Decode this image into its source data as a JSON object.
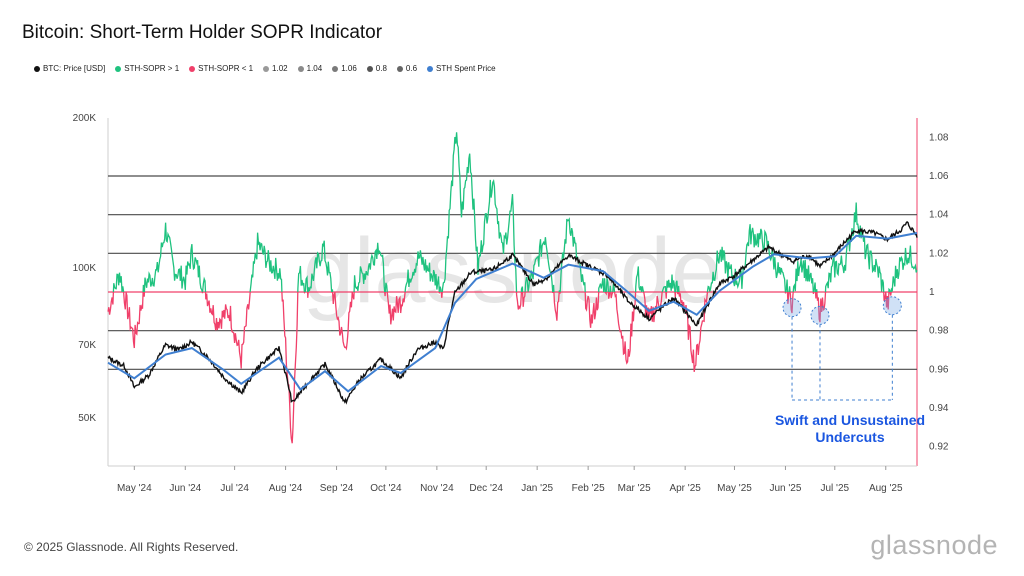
{
  "title": "Bitcoin: Short-Term Holder SOPR Indicator",
  "footer": "© 2025 Glassnode. All Rights Reserved.",
  "brand": "glassnode",
  "watermark": "glassnode",
  "legend": [
    {
      "label": "BTC: Price [USD]",
      "color": "#111111"
    },
    {
      "label": "STH-SOPR > 1",
      "color": "#1fc27f"
    },
    {
      "label": "STH-SOPR < 1",
      "color": "#f0406a"
    },
    {
      "label": "1.02",
      "color": "#9a9a9a"
    },
    {
      "label": "1.04",
      "color": "#8a8a8a"
    },
    {
      "label": "1.06",
      "color": "#7a7a7a"
    },
    {
      "label": "0.8",
      "color": "#555555"
    },
    {
      "label": "0.6",
      "color": "#666666"
    },
    {
      "label": "STH Spent Price",
      "color": "#3f7fd0"
    }
  ],
  "annotation": {
    "line1": "Swift and Unsustained",
    "line2": "Undercuts"
  },
  "chart_data": {
    "type": "line",
    "x_tick_labels": [
      "May '24",
      "Jun '24",
      "Jul '24",
      "Aug '24",
      "Sep '24",
      "Oct '24",
      "Nov '24",
      "Dec '24",
      "Jan '25",
      "Feb '25",
      "Mar '25",
      "Apr '25",
      "May '25",
      "Jun '25",
      "Jul '25",
      "Aug '25"
    ],
    "x_range": [
      "2024-04-15",
      "2025-08-20"
    ],
    "y_left": {
      "scale": "log",
      "ticks": [
        {
          "value": 50000,
          "label": "50K"
        },
        {
          "value": 70000,
          "label": "70K"
        },
        {
          "value": 100000,
          "label": "100K"
        },
        {
          "value": 200000,
          "label": "200K"
        }
      ],
      "range": [
        40000,
        200000
      ]
    },
    "y_right": {
      "scale": "linear",
      "ticks": [
        0.92,
        0.94,
        0.96,
        0.98,
        1,
        1.02,
        1.04,
        1.06,
        1.08
      ],
      "range": [
        0.91,
        1.09
      ]
    },
    "reference_lines": [
      0.96,
      0.98,
      1.02,
      1.04,
      1.06
    ],
    "price_points": [
      [
        "2024-04-15",
        66000
      ],
      [
        "2024-04-25",
        63500
      ],
      [
        "2024-05-01",
        57500
      ],
      [
        "2024-05-10",
        61000
      ],
      [
        "2024-05-20",
        70000
      ],
      [
        "2024-05-28",
        68500
      ],
      [
        "2024-06-05",
        71000
      ],
      [
        "2024-06-15",
        66000
      ],
      [
        "2024-06-24",
        60500
      ],
      [
        "2024-07-05",
        56000
      ],
      [
        "2024-07-15",
        63000
      ],
      [
        "2024-07-28",
        69000
      ],
      [
        "2024-08-05",
        53500
      ],
      [
        "2024-08-15",
        59000
      ],
      [
        "2024-08-25",
        64000
      ],
      [
        "2024-09-06",
        53500
      ],
      [
        "2024-09-15",
        59500
      ],
      [
        "2024-09-28",
        65500
      ],
      [
        "2024-10-10",
        60000
      ],
      [
        "2024-10-20",
        68500
      ],
      [
        "2024-10-31",
        71000
      ],
      [
        "2024-11-05",
        68500
      ],
      [
        "2024-11-12",
        89000
      ],
      [
        "2024-11-22",
        98000
      ],
      [
        "2024-12-05",
        99000
      ],
      [
        "2024-12-17",
        106000
      ],
      [
        "2024-12-30",
        92500
      ],
      [
        "2025-01-08",
        96000
      ],
      [
        "2025-01-20",
        106000
      ],
      [
        "2025-02-01",
        101000
      ],
      [
        "2025-02-12",
        97000
      ],
      [
        "2025-02-25",
        86000
      ],
      [
        "2025-03-10",
        79000
      ],
      [
        "2025-03-25",
        87000
      ],
      [
        "2025-04-08",
        76500
      ],
      [
        "2025-04-22",
        93000
      ],
      [
        "2025-05-01",
        96500
      ],
      [
        "2025-05-12",
        103500
      ],
      [
        "2025-05-22",
        110000
      ],
      [
        "2025-06-05",
        103000
      ],
      [
        "2025-06-15",
        106000
      ],
      [
        "2025-06-22",
        100500
      ],
      [
        "2025-07-01",
        107000
      ],
      [
        "2025-07-14",
        119000
      ],
      [
        "2025-07-25",
        117500
      ],
      [
        "2025-08-02",
        114000
      ],
      [
        "2025-08-10",
        119000
      ],
      [
        "2025-08-14",
        123000
      ],
      [
        "2025-08-20",
        116000
      ]
    ],
    "sth_spent_price_points": [
      [
        "2024-04-15",
        64500
      ],
      [
        "2024-05-01",
        60000
      ],
      [
        "2024-05-20",
        67000
      ],
      [
        "2024-06-05",
        69000
      ],
      [
        "2024-06-24",
        62500
      ],
      [
        "2024-07-05",
        58500
      ],
      [
        "2024-07-28",
        66000
      ],
      [
        "2024-08-10",
        57000
      ],
      [
        "2024-08-25",
        62000
      ],
      [
        "2024-09-08",
        56500
      ],
      [
        "2024-09-28",
        63500
      ],
      [
        "2024-10-10",
        61500
      ],
      [
        "2024-10-31",
        69000
      ],
      [
        "2024-11-12",
        85000
      ],
      [
        "2024-11-25",
        95000
      ],
      [
        "2024-12-17",
        102000
      ],
      [
        "2025-01-05",
        95500
      ],
      [
        "2025-01-20",
        101500
      ],
      [
        "2025-02-10",
        98500
      ],
      [
        "2025-02-25",
        89500
      ],
      [
        "2025-03-10",
        82000
      ],
      [
        "2025-03-25",
        85500
      ],
      [
        "2025-04-08",
        80500
      ],
      [
        "2025-04-22",
        90000
      ],
      [
        "2025-05-12",
        100500
      ],
      [
        "2025-05-25",
        106500
      ],
      [
        "2025-06-15",
        104500
      ],
      [
        "2025-07-01",
        105500
      ],
      [
        "2025-07-14",
        116000
      ],
      [
        "2025-08-02",
        114500
      ],
      [
        "2025-08-20",
        117500
      ]
    ],
    "sth_sopr_points": [
      [
        "2024-04-15",
        0.99
      ],
      [
        "2024-04-22",
        1.01
      ],
      [
        "2024-05-01",
        0.975
      ],
      [
        "2024-05-08",
        1.005
      ],
      [
        "2024-05-15",
        1.01
      ],
      [
        "2024-05-20",
        1.033
      ],
      [
        "2024-05-25",
        1.012
      ],
      [
        "2024-06-01",
        1.006
      ],
      [
        "2024-06-05",
        1.02
      ],
      [
        "2024-06-12",
        1.004
      ],
      [
        "2024-06-20",
        0.985
      ],
      [
        "2024-06-28",
        0.99
      ],
      [
        "2024-07-05",
        0.965
      ],
      [
        "2024-07-10",
        0.995
      ],
      [
        "2024-07-15",
        1.025
      ],
      [
        "2024-07-22",
        1.015
      ],
      [
        "2024-07-29",
        1.01
      ],
      [
        "2024-08-05",
        0.922
      ],
      [
        "2024-08-09",
        1.01
      ],
      [
        "2024-08-15",
        1.002
      ],
      [
        "2024-08-24",
        1.023
      ],
      [
        "2024-09-01",
        0.99
      ],
      [
        "2024-09-06",
        0.97
      ],
      [
        "2024-09-12",
        1.004
      ],
      [
        "2024-09-20",
        1.012
      ],
      [
        "2024-09-27",
        1.026
      ],
      [
        "2024-10-03",
        0.988
      ],
      [
        "2024-10-10",
        0.995
      ],
      [
        "2024-10-16",
        1.01
      ],
      [
        "2024-10-21",
        1.018
      ],
      [
        "2024-10-30",
        1.008
      ],
      [
        "2024-11-05",
        1.002
      ],
      [
        "2024-11-11",
        1.065
      ],
      [
        "2024-11-13",
        1.085
      ],
      [
        "2024-11-16",
        1.04
      ],
      [
        "2024-11-21",
        1.073
      ],
      [
        "2024-11-26",
        1.012
      ],
      [
        "2024-12-05",
        1.06
      ],
      [
        "2024-12-11",
        1.02
      ],
      [
        "2024-12-17",
        1.045
      ],
      [
        "2024-12-20",
        0.992
      ],
      [
        "2024-12-30",
        1.01
      ],
      [
        "2025-01-06",
        1.03
      ],
      [
        "2025-01-13",
        0.99
      ],
      [
        "2025-01-20",
        1.04
      ],
      [
        "2025-01-27",
        1.01
      ],
      [
        "2025-02-03",
        0.985
      ],
      [
        "2025-02-10",
        1.005
      ],
      [
        "2025-02-17",
        1.0
      ],
      [
        "2025-02-25",
        0.962
      ],
      [
        "2025-03-03",
        1.01
      ],
      [
        "2025-03-10",
        0.985
      ],
      [
        "2025-03-17",
        0.997
      ],
      [
        "2025-03-24",
        1.005
      ],
      [
        "2025-03-31",
        0.995
      ],
      [
        "2025-04-07",
        0.962
      ],
      [
        "2025-04-14",
        0.998
      ],
      [
        "2025-04-22",
        1.02
      ],
      [
        "2025-04-28",
        1.01
      ],
      [
        "2025-05-05",
        1.005
      ],
      [
        "2025-05-10",
        1.03
      ],
      [
        "2025-05-20",
        1.026
      ],
      [
        "2025-05-28",
        1.01
      ],
      [
        "2025-06-05",
        0.995
      ],
      [
        "2025-06-10",
        1.018
      ],
      [
        "2025-06-18",
        1.002
      ],
      [
        "2025-06-22",
        0.99
      ],
      [
        "2025-06-30",
        1.012
      ],
      [
        "2025-07-07",
        1.015
      ],
      [
        "2025-07-11",
        1.03
      ],
      [
        "2025-07-14",
        1.041
      ],
      [
        "2025-07-20",
        1.02
      ],
      [
        "2025-07-28",
        1.01
      ],
      [
        "2025-08-02",
        0.993
      ],
      [
        "2025-08-08",
        1.012
      ],
      [
        "2025-08-14",
        1.02
      ],
      [
        "2025-08-20",
        1.015
      ]
    ],
    "highlight_points": [
      [
        "2025-06-05",
        0.995
      ],
      [
        "2025-06-22",
        0.991
      ],
      [
        "2025-08-05",
        0.996
      ]
    ]
  }
}
